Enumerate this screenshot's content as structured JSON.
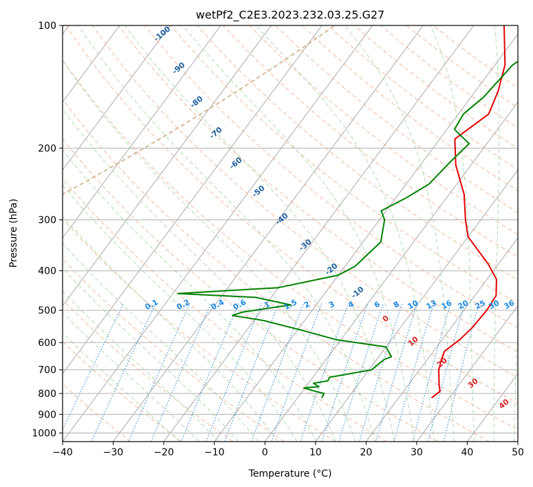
{
  "chart_data": {
    "type": "line",
    "chart_kind": "skew-t log-p diagram",
    "title": "wetPf2_C2E3.2023.232.03.25.G27",
    "xlabel": "Temperature (°C)",
    "ylabel": "Pressure (hPa)",
    "xlim": [
      -40,
      50
    ],
    "ylim": [
      1050,
      100
    ],
    "y_scale": "log",
    "x_ticks": [
      "−40",
      "−30",
      "−20",
      "−10",
      "0",
      "10",
      "20",
      "30",
      "40",
      "50"
    ],
    "y_ticks": [
      100,
      200,
      300,
      400,
      500,
      600,
      700,
      800,
      900,
      1000
    ],
    "grid": true,
    "colors": {
      "temperature": "#e00000",
      "dewpoint": "#008000",
      "isotherm": "#a0a0a0",
      "dry_adiabat": "#f4a582",
      "moist_adiabat": "#a6d9a6",
      "mixing_ratio": "#1e88e5",
      "mixing_ratio_label": "#1e88e5",
      "dry_adiabat_label": "#1f5f9f",
      "moist_label": "#d62728",
      "freezing_line": "#d2b48c"
    },
    "series": [
      {
        "key": "temperature",
        "points": [
          [
            26.5,
            820
          ],
          [
            27.2,
            790
          ],
          [
            26.0,
            760
          ],
          [
            23.8,
            700
          ],
          [
            22.8,
            660
          ],
          [
            22.2,
            630
          ],
          [
            23.5,
            590
          ],
          [
            24.2,
            550
          ],
          [
            24.5,
            500
          ],
          [
            24.2,
            460
          ],
          [
            21.9,
            420
          ],
          [
            18.0,
            385
          ],
          [
            10.0,
            330
          ],
          [
            7.0,
            300
          ],
          [
            3.0,
            260
          ],
          [
            -3.0,
            220
          ],
          [
            -7.0,
            190
          ],
          [
            -4.0,
            165
          ],
          [
            -5.5,
            145
          ],
          [
            -8.0,
            125
          ],
          [
            -14.0,
            100
          ]
        ]
      },
      {
        "key": "dewpoint",
        "points": [
          [
            4.8,
            820
          ],
          [
            4.6,
            800
          ],
          [
            2.5,
            790
          ],
          [
            -0.2,
            775
          ],
          [
            2.6,
            770
          ],
          [
            1.0,
            755
          ],
          [
            3.5,
            745
          ],
          [
            3.3,
            730
          ],
          [
            10.5,
            700
          ],
          [
            11.0,
            680
          ],
          [
            11.5,
            660
          ],
          [
            12.5,
            650
          ],
          [
            10.0,
            615
          ],
          [
            -1.0,
            590
          ],
          [
            -9.0,
            560
          ],
          [
            -18.0,
            530
          ],
          [
            -25.0,
            515
          ],
          [
            -23.5,
            505
          ],
          [
            -15.0,
            485
          ],
          [
            -23.0,
            465
          ],
          [
            -39.0,
            455
          ],
          [
            -20.0,
            440
          ],
          [
            -10.0,
            410
          ],
          [
            -8.0,
            390
          ],
          [
            -6.5,
            340
          ],
          [
            -9.0,
            300
          ],
          [
            -11.0,
            285
          ],
          [
            -8.0,
            265
          ],
          [
            -5.5,
            245
          ],
          [
            -4.5,
            215
          ],
          [
            -3.5,
            195
          ],
          [
            -8.5,
            180
          ],
          [
            -9.0,
            165
          ],
          [
            -7.5,
            150
          ],
          [
            -6.5,
            125
          ],
          [
            -3.5,
            112
          ],
          [
            -5.0,
            100
          ]
        ]
      }
    ],
    "mixing_ratio_labels": [
      "0.1",
      "0.2",
      "0.4",
      "0.6",
      "1",
      "1.5",
      "2",
      "3",
      "4",
      "6",
      "8",
      "10",
      "13",
      "16",
      "20",
      "25",
      "30",
      "36"
    ],
    "dry_adiabat_labels": [
      "-100",
      "-90",
      "-80",
      "-70",
      "-60",
      "-50",
      "-40",
      "-30",
      "-20",
      "-10"
    ],
    "moist_adiabat_labels": [
      "0",
      "10",
      "20",
      "30",
      "40"
    ]
  }
}
